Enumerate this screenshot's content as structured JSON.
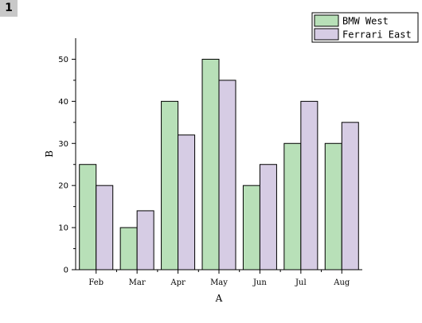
{
  "panel_label": "1",
  "colors": {
    "series_0": "#b8e0b8",
    "series_1": "#d6cce4",
    "stroke": "#000000"
  },
  "chart_data": {
    "type": "bar",
    "title": "",
    "xlabel": "A",
    "ylabel": "B",
    "categories": [
      "Feb",
      "Mar",
      "Apr",
      "May",
      "Jun",
      "Jul",
      "Aug"
    ],
    "series": [
      {
        "name": "BMW West",
        "values": [
          25,
          10,
          40,
          50,
          20,
          30,
          30
        ]
      },
      {
        "name": "Ferrari East",
        "values": [
          20,
          14,
          32,
          45,
          25,
          40,
          35
        ]
      }
    ],
    "ylim": [
      0,
      55
    ],
    "yticks": [
      0,
      10,
      20,
      30,
      40,
      50
    ],
    "grid": false,
    "legend_position": "top-right"
  }
}
